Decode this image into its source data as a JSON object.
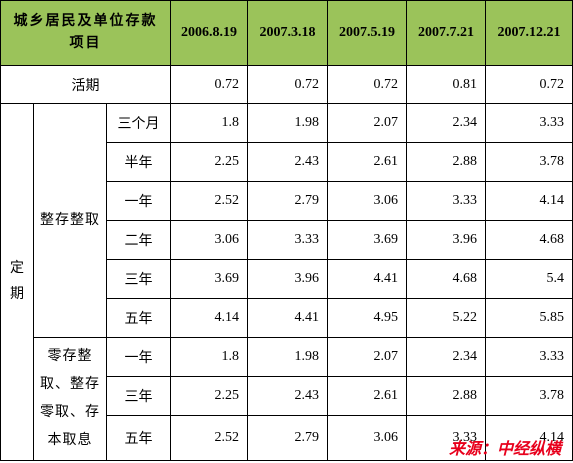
{
  "table": {
    "corner": "城乡居民及单位存款项目",
    "columns": [
      "2006.8.19",
      "2007.3.18",
      "2007.5.19",
      "2007.7.21",
      "2007.12.21"
    ],
    "demand": {
      "label": "活期",
      "values": [
        0.72,
        0.72,
        0.72,
        0.81,
        0.72
      ]
    },
    "fixed_label": "定期",
    "groups": [
      {
        "label": "整存整取",
        "rows": [
          {
            "term": "三个月",
            "values": [
              1.8,
              1.98,
              2.07,
              2.34,
              3.33
            ]
          },
          {
            "term": "半年",
            "values": [
              2.25,
              2.43,
              2.61,
              2.88,
              3.78
            ]
          },
          {
            "term": "一年",
            "values": [
              2.52,
              2.79,
              3.06,
              3.33,
              4.14
            ]
          },
          {
            "term": "二年",
            "values": [
              3.06,
              3.33,
              3.69,
              3.96,
              4.68
            ]
          },
          {
            "term": "三年",
            "values": [
              3.69,
              3.96,
              4.41,
              4.68,
              5.4
            ]
          },
          {
            "term": "五年",
            "values": [
              4.14,
              4.41,
              4.95,
              5.22,
              5.85
            ]
          }
        ]
      },
      {
        "label": "零存整取、整存零取、存本取息",
        "rows": [
          {
            "term": "一年",
            "values": [
              1.8,
              1.98,
              2.07,
              2.34,
              3.33
            ]
          },
          {
            "term": "三年",
            "values": [
              2.25,
              2.43,
              2.61,
              2.88,
              3.78
            ]
          },
          {
            "term": "五年",
            "values": [
              2.52,
              2.79,
              3.06,
              3.33,
              4.14
            ]
          }
        ]
      }
    ]
  },
  "source": "来源：中经纵横"
}
